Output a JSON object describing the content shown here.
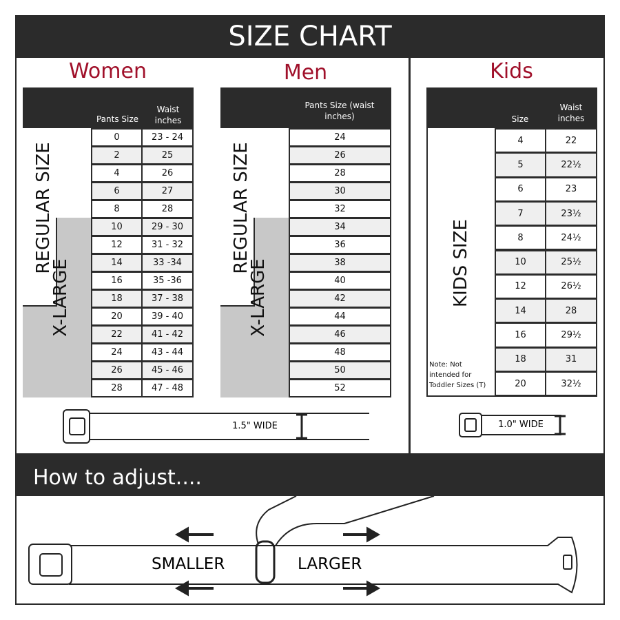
{
  "title": "SIZE CHART",
  "women": {
    "heading": "Women",
    "col1": "Pants Size",
    "col2": "Waist inches",
    "regular_label": "REGULAR SIZE",
    "xlarge_label": "X-LARGE",
    "rows": [
      [
        "0",
        "23 - 24"
      ],
      [
        "2",
        "25"
      ],
      [
        "4",
        "26"
      ],
      [
        "6",
        "27"
      ],
      [
        "8",
        "28"
      ],
      [
        "10",
        "29 - 30"
      ],
      [
        "12",
        "31 - 32"
      ],
      [
        "14",
        "33 -34"
      ],
      [
        "16",
        "35 -36"
      ],
      [
        "18",
        "37 - 38"
      ],
      [
        "20",
        "39 - 40"
      ],
      [
        "22",
        "41 - 42"
      ],
      [
        "24",
        "43 - 44"
      ],
      [
        "26",
        "45 - 46"
      ],
      [
        "28",
        "47 - 48"
      ]
    ]
  },
  "men": {
    "heading": "Men",
    "col1": "Pants Size (waist inches)",
    "regular_label": "REGULAR SIZE",
    "xlarge_label": "X-LARGE",
    "rows": [
      "24",
      "26",
      "28",
      "30",
      "32",
      "34",
      "36",
      "38",
      "40",
      "42",
      "44",
      "46",
      "48",
      "50",
      "52"
    ],
    "belt_width": "1.5\" WIDE"
  },
  "kids": {
    "heading": "Kids",
    "col1": "Size",
    "col2": "Waist inches",
    "label": "KIDS SIZE",
    "note": "Note: Not intended for Toddler Sizes (T)",
    "rows": [
      [
        "4",
        "22"
      ],
      [
        "5",
        "22½"
      ],
      [
        "6",
        "23"
      ],
      [
        "7",
        "23½"
      ],
      [
        "8",
        "24½"
      ],
      [
        "10",
        "25½"
      ],
      [
        "12",
        "26½"
      ],
      [
        "14",
        "28"
      ],
      [
        "16",
        "29½"
      ],
      [
        "18",
        "31"
      ],
      [
        "20",
        "32½"
      ]
    ],
    "belt_width": "1.0\" WIDE"
  },
  "adjust": {
    "heading": "How to adjust....",
    "smaller": "SMALLER",
    "larger": "LARGER"
  },
  "colors": {
    "dark": "#2b2b2b",
    "accent": "#a0102a",
    "gray": "#c8c8c8"
  }
}
